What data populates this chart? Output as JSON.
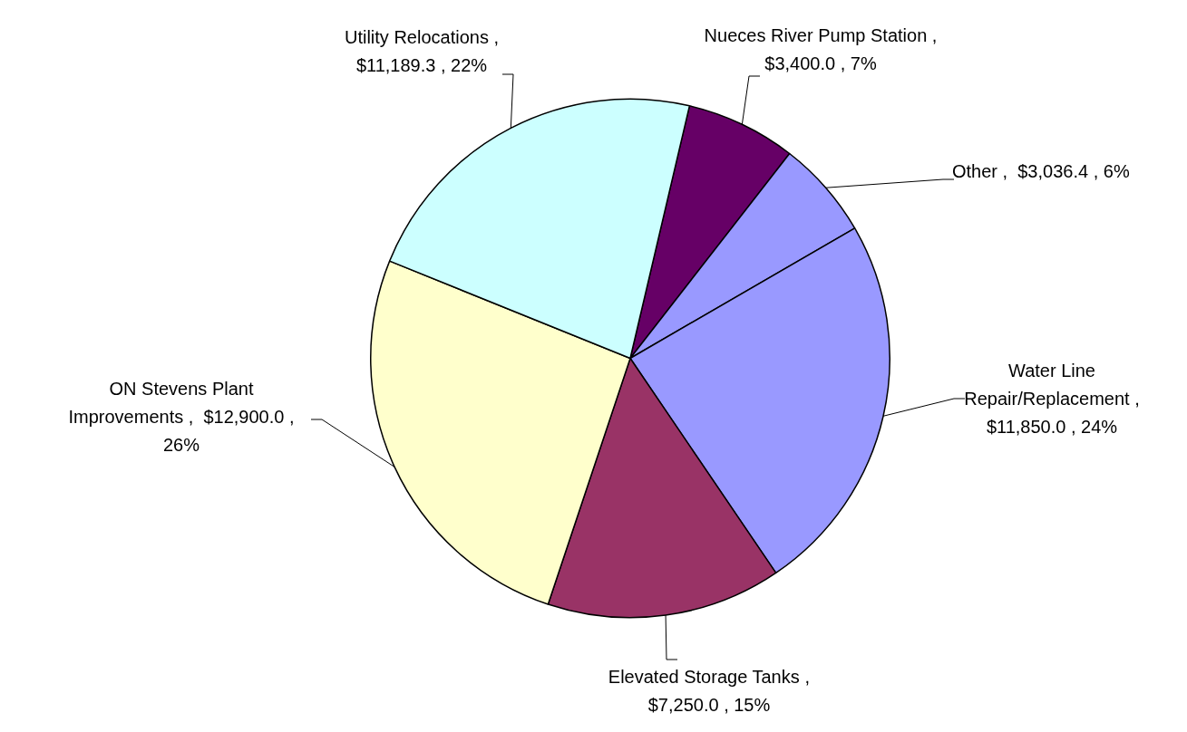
{
  "chart_data": {
    "type": "pie",
    "categories": [
      "Nueces River Pump Station",
      "Other",
      "Water Line Repair/Replacement",
      "Elevated Storage Tanks",
      "ON Stevens Plant Improvements",
      "Utility Relocations"
    ],
    "values": [
      3400.0,
      3036.4,
      11850.0,
      7250.0,
      12900.0,
      11189.3
    ],
    "value_labels": [
      ", $3,400.0 , 7%",
      ",  $3,036.4 , 6%",
      ", $11,850.0 , 24%",
      ", $7,250.0 , 15%",
      ",  $12,900.0 , 26%",
      ", $11,189.3 , 22%"
    ],
    "colors": [
      "#660066",
      "#9999ff",
      "#9999ff",
      "#993366",
      "#ffffcc",
      "#ccffff"
    ],
    "legend": false
  }
}
